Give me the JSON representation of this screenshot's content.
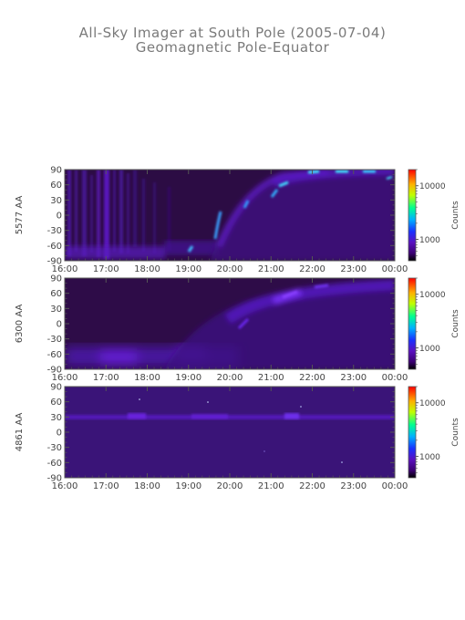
{
  "title": "All-Sky Imager at South Pole (2005-07-04)",
  "subtitle": "Geomagnetic Pole-Equator",
  "chart_data": [
    {
      "type": "heatmap",
      "ylabel": "5577 AA",
      "yticks": [
        "90",
        "60",
        "30",
        "0",
        "-30",
        "-60",
        "-90"
      ],
      "ylim": [
        -90,
        90
      ],
      "xticks": [
        "16:00",
        "17:00",
        "18:00",
        "19:00",
        "20:00",
        "21:00",
        "22:00",
        "23:00",
        "00:00"
      ],
      "colorbar_label": "Counts",
      "colorbar_ticks": [
        "10000",
        "1000"
      ],
      "colorbar_tick_values": [
        10000,
        1000
      ],
      "colorscale": "log",
      "grid": false
    },
    {
      "type": "heatmap",
      "ylabel": "6300 AA",
      "yticks": [
        "90",
        "60",
        "30",
        "0",
        "-30",
        "-60",
        "-90"
      ],
      "ylim": [
        -90,
        90
      ],
      "xticks": [
        "16:00",
        "17:00",
        "18:00",
        "19:00",
        "20:00",
        "21:00",
        "22:00",
        "23:00",
        "00:00"
      ],
      "colorbar_label": "Counts",
      "colorbar_ticks": [
        "10000",
        "1000"
      ],
      "colorbar_tick_values": [
        10000,
        1000
      ],
      "colorscale": "log",
      "grid": false
    },
    {
      "type": "heatmap",
      "ylabel": "4861 AA",
      "yticks": [
        "90",
        "60",
        "30",
        "0",
        "-30",
        "-60",
        "-90"
      ],
      "ylim": [
        -90,
        90
      ],
      "xticks": [
        "16:00",
        "17:00",
        "18:00",
        "19:00",
        "20:00",
        "21:00",
        "22:00",
        "23:00",
        "00:00"
      ],
      "colorbar_label": "Counts",
      "colorbar_ticks": [
        "10000",
        "1000"
      ],
      "colorbar_tick_values": [
        10000,
        1000
      ],
      "colorscale": "log",
      "grid": false
    }
  ],
  "colors": {
    "background_dark": "#2a0a3a",
    "aurora_low": "#5a18b8",
    "aurora_mid": "#7a2cf0",
    "aurora_high": "#30a0ff",
    "aurora_peak": "#40f0ff",
    "axis": "#555555"
  }
}
